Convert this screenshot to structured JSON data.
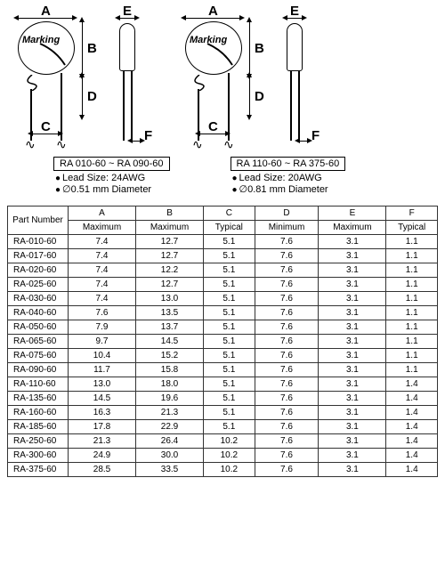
{
  "labels": {
    "A": "A",
    "B": "B",
    "C": "C",
    "D": "D",
    "E": "E",
    "F": "F",
    "marking": "Marking"
  },
  "spec1": {
    "range": "RA 010-60 ~ RA 090-60",
    "lead": "Lead Size: 24AWG",
    "dia": "∅0.51 mm Diameter"
  },
  "spec2": {
    "range": "RA 110-60 ~ RA 375-60",
    "lead": "Lead Size: 20AWG",
    "dia": "∅0.81 mm Diameter"
  },
  "table": {
    "pn_header": "Part Number",
    "cols": [
      "A",
      "B",
      "C",
      "D",
      "E",
      "F"
    ],
    "subs": [
      "Maximum",
      "Maximum",
      "Typical",
      "Minimum",
      "Maximum",
      "Typical"
    ],
    "rows": [
      [
        "RA-010-60",
        "7.4",
        "12.7",
        "5.1",
        "7.6",
        "3.1",
        "1.1"
      ],
      [
        "RA-017-60",
        "7.4",
        "12.7",
        "5.1",
        "7.6",
        "3.1",
        "1.1"
      ],
      [
        "RA-020-60",
        "7.4",
        "12.2",
        "5.1",
        "7.6",
        "3.1",
        "1.1"
      ],
      [
        "RA-025-60",
        "7.4",
        "12.7",
        "5.1",
        "7.6",
        "3.1",
        "1.1"
      ],
      [
        "RA-030-60",
        "7.4",
        "13.0",
        "5.1",
        "7.6",
        "3.1",
        "1.1"
      ],
      [
        "RA-040-60",
        "7.6",
        "13.5",
        "5.1",
        "7.6",
        "3.1",
        "1.1"
      ],
      [
        "RA-050-60",
        "7.9",
        "13.7",
        "5.1",
        "7.6",
        "3.1",
        "1.1"
      ],
      [
        "RA-065-60",
        "9.7",
        "14.5",
        "5.1",
        "7.6",
        "3.1",
        "1.1"
      ],
      [
        "RA-075-60",
        "10.4",
        "15.2",
        "5.1",
        "7.6",
        "3.1",
        "1.1"
      ],
      [
        "RA-090-60",
        "11.7",
        "15.8",
        "5.1",
        "7.6",
        "3.1",
        "1.1"
      ],
      [
        "RA-110-60",
        "13.0",
        "18.0",
        "5.1",
        "7.6",
        "3.1",
        "1.4"
      ],
      [
        "RA-135-60",
        "14.5",
        "19.6",
        "5.1",
        "7.6",
        "3.1",
        "1.4"
      ],
      [
        "RA-160-60",
        "16.3",
        "21.3",
        "5.1",
        "7.6",
        "3.1",
        "1.4"
      ],
      [
        "RA-185-60",
        "17.8",
        "22.9",
        "5.1",
        "7.6",
        "3.1",
        "1.4"
      ],
      [
        "RA-250-60",
        "21.3",
        "26.4",
        "10.2",
        "7.6",
        "3.1",
        "1.4"
      ],
      [
        "RA-300-60",
        "24.9",
        "30.0",
        "10.2",
        "7.6",
        "3.1",
        "1.4"
      ],
      [
        "RA-375-60",
        "28.5",
        "33.5",
        "10.2",
        "7.6",
        "3.1",
        "1.4"
      ]
    ]
  }
}
